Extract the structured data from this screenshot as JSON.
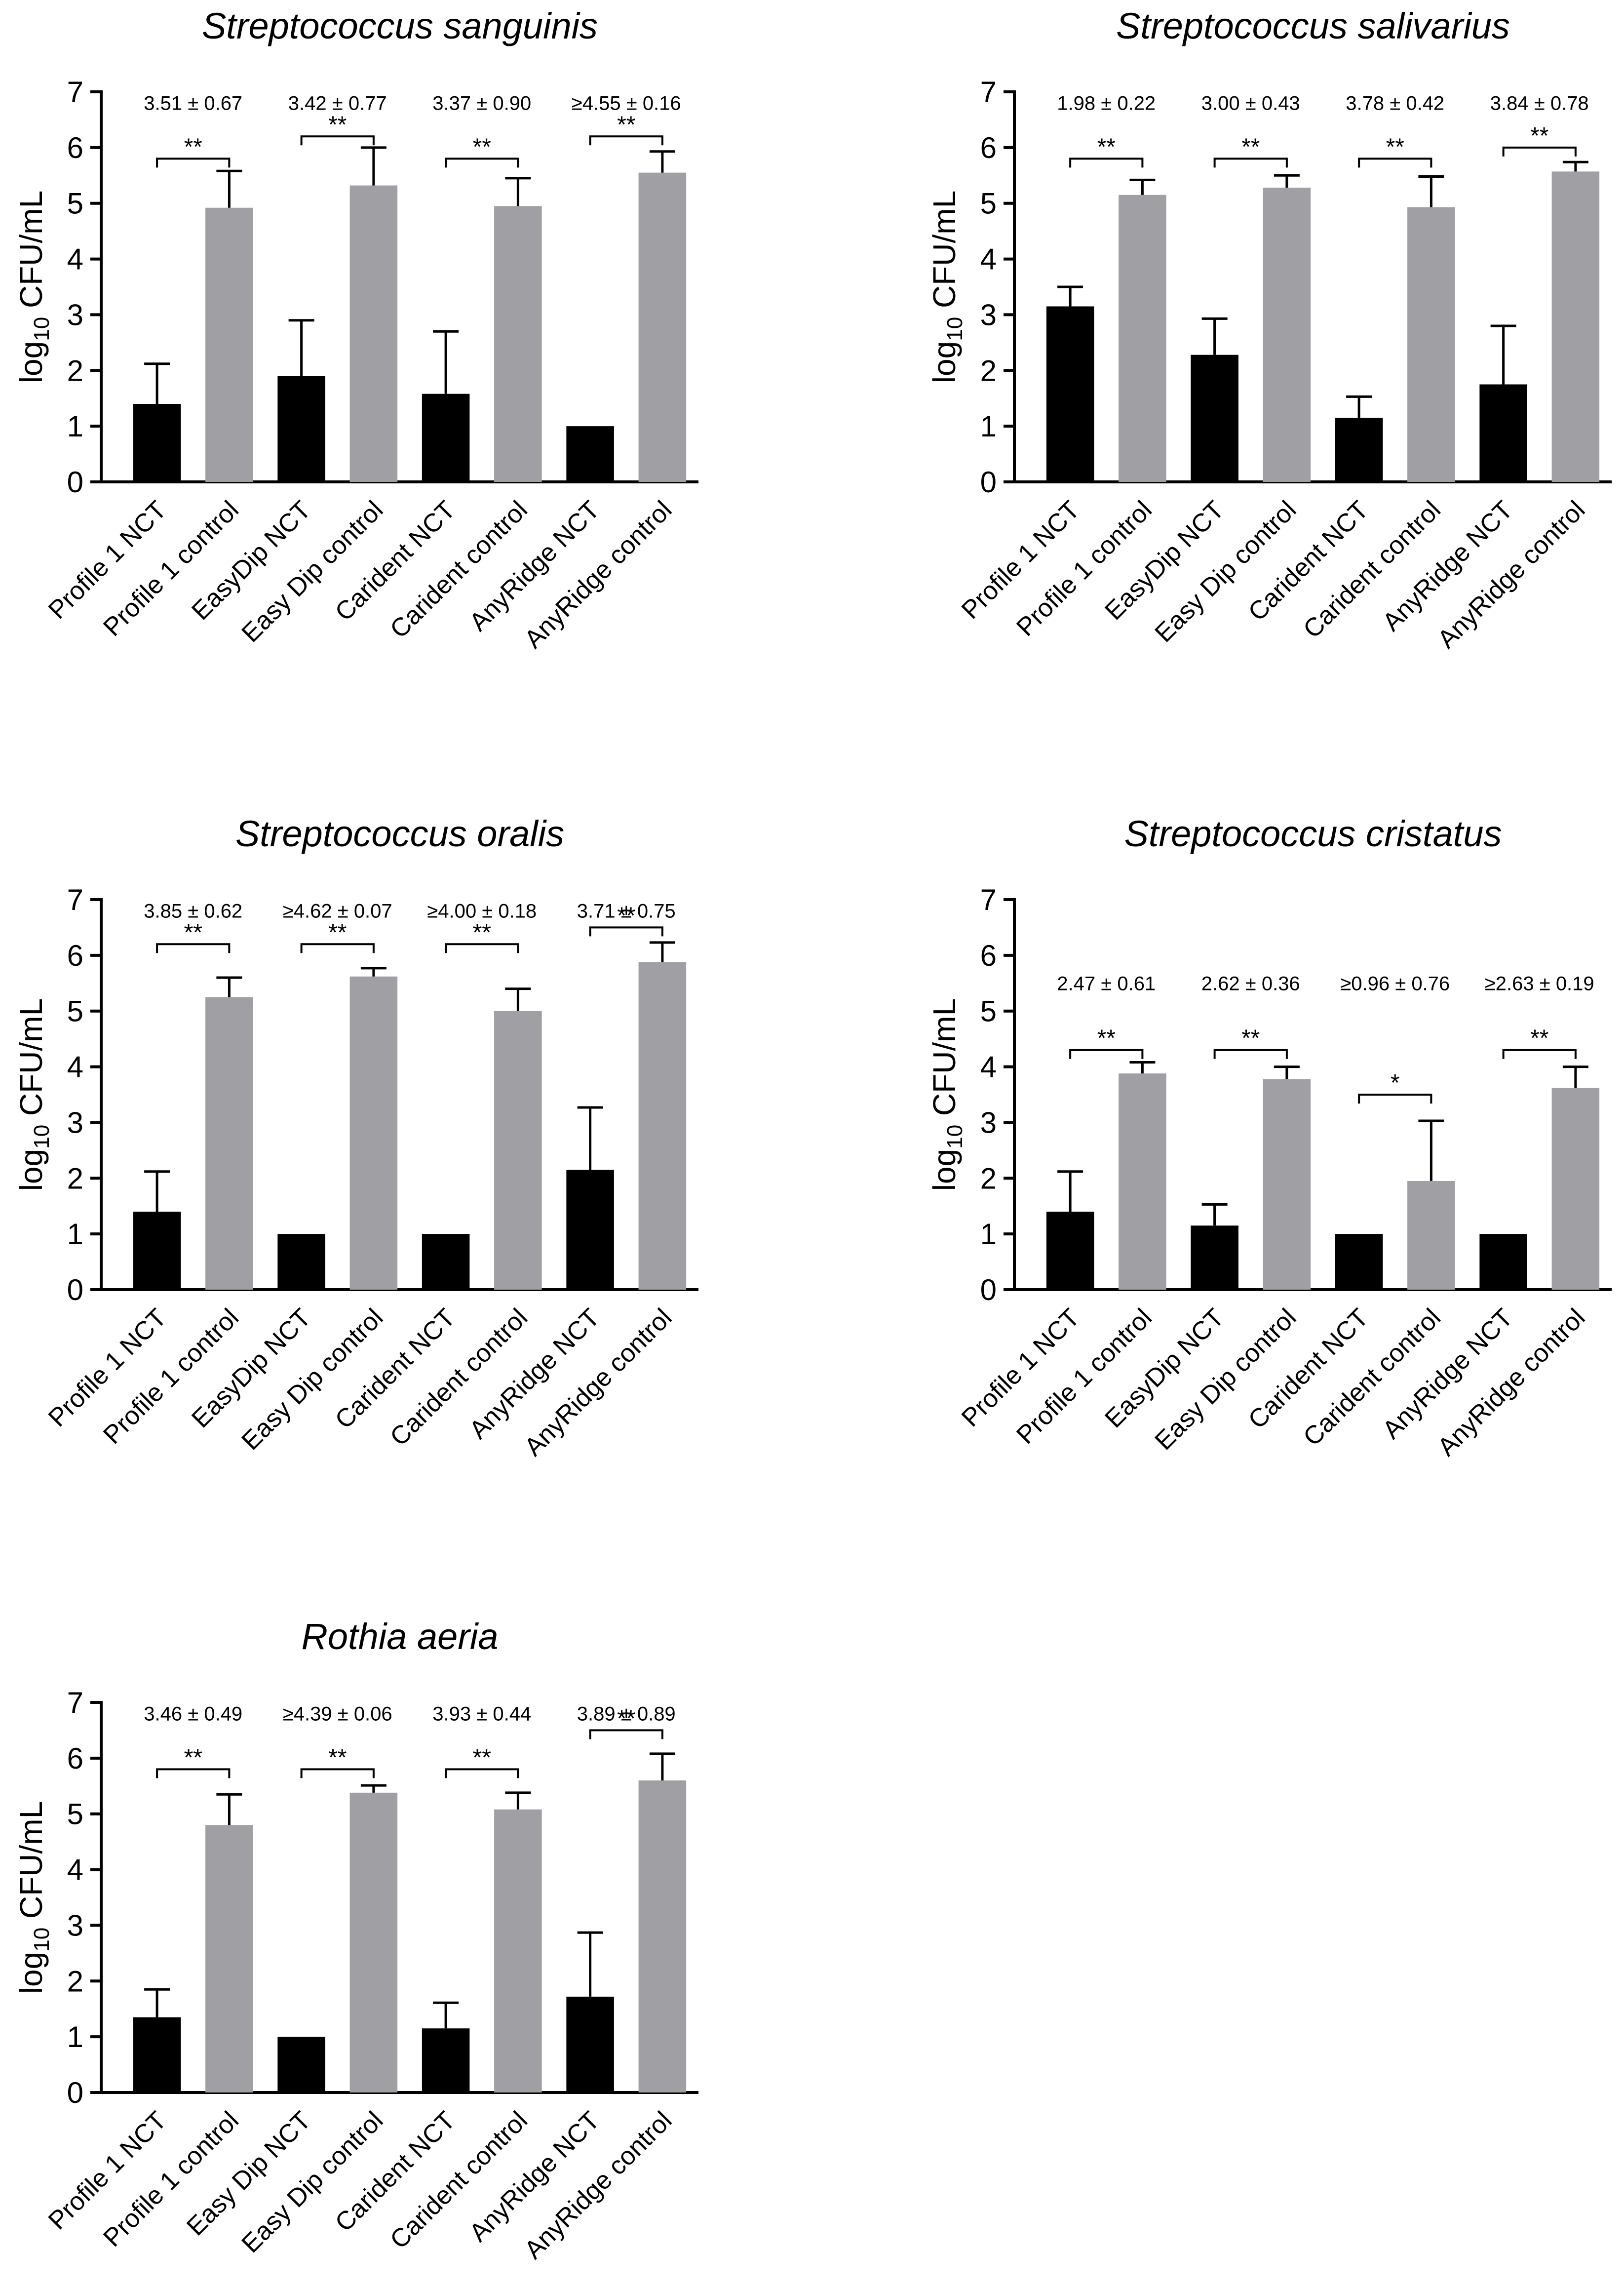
{
  "chart_data": [
    {
      "type": "bar",
      "title": "Streptococcus sanguinis",
      "ylabel": "log10 CFU/mL",
      "ylabel_base": "log",
      "ylabel_sub": "10",
      "ylabel_rest": " CFU/mL",
      "ylim": [
        0,
        7
      ],
      "yticks": [
        "0",
        "1",
        "2",
        "3",
        "4",
        "5",
        "6",
        "7"
      ],
      "categories": [
        "Profile 1 NCT",
        "Profile 1 control",
        "EasyDip NCT",
        "Easy Dip control",
        "Carident NCT",
        "Carident control",
        "AnyRidge NCT",
        "AnyRidge control"
      ],
      "values": [
        1.4,
        4.92,
        1.9,
        5.32,
        1.58,
        4.95,
        1.0,
        5.55
      ],
      "errors": [
        0.72,
        0.66,
        1.0,
        0.68,
        1.12,
        0.5,
        0.0,
        0.38
      ],
      "colors": [
        "#000000",
        "#a0a0a4",
        "#000000",
        "#a0a0a4",
        "#000000",
        "#a0a0a4",
        "#000000",
        "#a0a0a4"
      ],
      "group_stats": [
        "3.51 ± 0.67",
        "3.42 ± 0.77",
        "3.37 ± 0.90",
        "≥4.55 ± 0.16"
      ],
      "significance": [
        "**",
        "**",
        "**",
        "**"
      ],
      "bracket_level": [
        5.8,
        6.2,
        5.8,
        6.2
      ]
    },
    {
      "type": "bar",
      "title": "Streptococcus salivarius",
      "ylabel": "log10 CFU/mL",
      "ylabel_base": "log",
      "ylabel_sub": "10",
      "ylabel_rest": " CFU/mL",
      "ylim": [
        0,
        7
      ],
      "yticks": [
        "0",
        "1",
        "2",
        "3",
        "4",
        "5",
        "6",
        "7"
      ],
      "categories": [
        "Profile 1 NCT",
        "Profile 1 control",
        "EasyDip NCT",
        "Easy Dip control",
        "Carident NCT",
        "Carident control",
        "AnyRidge NCT",
        "AnyRidge control"
      ],
      "values": [
        3.15,
        5.15,
        2.28,
        5.28,
        1.15,
        4.93,
        1.75,
        5.57
      ],
      "errors": [
        0.35,
        0.27,
        0.65,
        0.22,
        0.38,
        0.55,
        1.05,
        0.17
      ],
      "colors": [
        "#000000",
        "#a0a0a4",
        "#000000",
        "#a0a0a4",
        "#000000",
        "#a0a0a4",
        "#000000",
        "#a0a0a4"
      ],
      "group_stats": [
        "1.98 ± 0.22",
        "3.00 ± 0.43",
        "3.78 ± 0.42",
        "3.84 ± 0.78"
      ],
      "significance": [
        "**",
        "**",
        "**",
        "**"
      ],
      "bracket_level": [
        5.8,
        5.8,
        5.8,
        6.0
      ]
    },
    {
      "type": "bar",
      "title": "Streptococcus oralis",
      "ylabel": "log10 CFU/mL",
      "ylabel_base": "log",
      "ylabel_sub": "10",
      "ylabel_rest": " CFU/mL",
      "ylim": [
        0,
        7
      ],
      "yticks": [
        "0",
        "1",
        "2",
        "3",
        "4",
        "5",
        "6",
        "7"
      ],
      "categories": [
        "Profile 1 NCT",
        "Profile 1 control",
        "EasyDip NCT",
        "Easy Dip control",
        "Carident NCT",
        "Carident control",
        "AnyRidge NCT",
        "AnyRidge control"
      ],
      "values": [
        1.4,
        5.25,
        1.0,
        5.62,
        1.0,
        5.0,
        2.15,
        5.88
      ],
      "errors": [
        0.72,
        0.35,
        0.0,
        0.15,
        0.0,
        0.4,
        1.12,
        0.35
      ],
      "colors": [
        "#000000",
        "#a0a0a4",
        "#000000",
        "#a0a0a4",
        "#000000",
        "#a0a0a4",
        "#000000",
        "#a0a0a4"
      ],
      "group_stats": [
        "3.85 ± 0.62",
        "≥4.62 ± 0.07",
        "≥4.00 ± 0.18",
        "3.71 ± 0.75"
      ],
      "significance": [
        "**",
        "**",
        "**",
        "**"
      ],
      "bracket_level": [
        6.2,
        6.2,
        6.2,
        6.5
      ]
    },
    {
      "type": "bar",
      "title": "Streptococcus cristatus",
      "ylabel": "log10 CFU/mL",
      "ylabel_base": "log",
      "ylabel_sub": "10",
      "ylabel_rest": " CFU/mL",
      "ylim": [
        0,
        7
      ],
      "yticks": [
        "0",
        "1",
        "2",
        "3",
        "4",
        "5",
        "6",
        "7"
      ],
      "categories": [
        "Profile 1 NCT",
        "Profile 1 control",
        "EasyDip NCT",
        "Easy Dip control",
        "Carident NCT",
        "Carident control",
        "AnyRidge NCT",
        "AnyRidge control"
      ],
      "values": [
        1.4,
        3.88,
        1.15,
        3.78,
        1.0,
        1.95,
        1.0,
        3.62
      ],
      "errors": [
        0.72,
        0.2,
        0.38,
        0.22,
        0.0,
        1.08,
        0.0,
        0.38
      ],
      "colors": [
        "#000000",
        "#a0a0a4",
        "#000000",
        "#a0a0a4",
        "#000000",
        "#a0a0a4",
        "#000000",
        "#a0a0a4"
      ],
      "group_stats": [
        "2.47 ± 0.61",
        "2.62 ± 0.36",
        "≥0.96 ± 0.76",
        "≥2.63 ± 0.19"
      ],
      "significance": [
        "**",
        "**",
        "*",
        "**"
      ],
      "bracket_level": [
        4.3,
        4.3,
        3.5,
        4.3
      ]
    },
    {
      "type": "bar",
      "title": "Rothia aeria",
      "ylabel": "log10 CFU/mL",
      "ylabel_base": "log",
      "ylabel_sub": "10",
      "ylabel_rest": " CFU/mL",
      "ylim": [
        0,
        7
      ],
      "yticks": [
        "0",
        "1",
        "2",
        "3",
        "4",
        "5",
        "6",
        "7"
      ],
      "categories": [
        "Profile 1 NCT",
        "Profile 1 control",
        "Easy Dip NCT",
        "Easy Dip control",
        "Carident NCT",
        "Carident control",
        "AnyRidge NCT",
        "AnyRidge control"
      ],
      "values": [
        1.35,
        4.8,
        1.0,
        5.38,
        1.15,
        5.08,
        1.72,
        5.6
      ],
      "errors": [
        0.5,
        0.55,
        0.0,
        0.13,
        0.46,
        0.3,
        1.15,
        0.48
      ],
      "colors": [
        "#000000",
        "#a0a0a4",
        "#000000",
        "#a0a0a4",
        "#000000",
        "#a0a0a4",
        "#000000",
        "#a0a0a4"
      ],
      "group_stats": [
        "3.46 ± 0.49",
        "≥4.39 ± 0.06",
        "3.93 ± 0.44",
        "3.89 ± 0.89"
      ],
      "significance": [
        "**",
        "**",
        "**",
        "**"
      ],
      "bracket_level": [
        5.8,
        5.8,
        5.8,
        6.5
      ]
    }
  ]
}
